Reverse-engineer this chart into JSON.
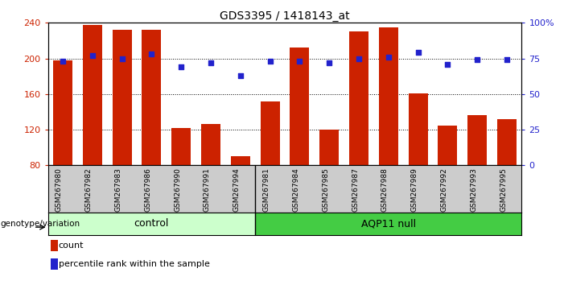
{
  "title": "GDS3395 / 1418143_at",
  "categories": [
    "GSM267980",
    "GSM267982",
    "GSM267983",
    "GSM267986",
    "GSM267990",
    "GSM267991",
    "GSM267994",
    "GSM267981",
    "GSM267984",
    "GSM267985",
    "GSM267987",
    "GSM267988",
    "GSM267989",
    "GSM267992",
    "GSM267993",
    "GSM267995"
  ],
  "bar_values": [
    198,
    238,
    232,
    232,
    122,
    126,
    90,
    152,
    212,
    120,
    230,
    235,
    161,
    125,
    136,
    132
  ],
  "dot_values": [
    73,
    77,
    75,
    78,
    69,
    72,
    63,
    73,
    73,
    72,
    75,
    76,
    79,
    71,
    74,
    74
  ],
  "control_count": 7,
  "aqp11_count": 9,
  "ylim_left": [
    80,
    240
  ],
  "ylim_right": [
    0,
    100
  ],
  "yticks_left": [
    80,
    120,
    160,
    200,
    240
  ],
  "yticks_right": [
    0,
    25,
    50,
    75,
    100
  ],
  "ytick_labels_right": [
    "0",
    "25",
    "50",
    "75",
    "100%"
  ],
  "bar_color": "#cc2200",
  "dot_color": "#2222cc",
  "control_bg": "#ccffcc",
  "aqp11_bg": "#44cc44",
  "tick_bg": "#cccccc",
  "legend_count_label": "count",
  "legend_pct_label": "percentile rank within the sample",
  "genotype_label": "genotype/variation",
  "control_label": "control",
  "aqp11_label": "AQP11 null"
}
